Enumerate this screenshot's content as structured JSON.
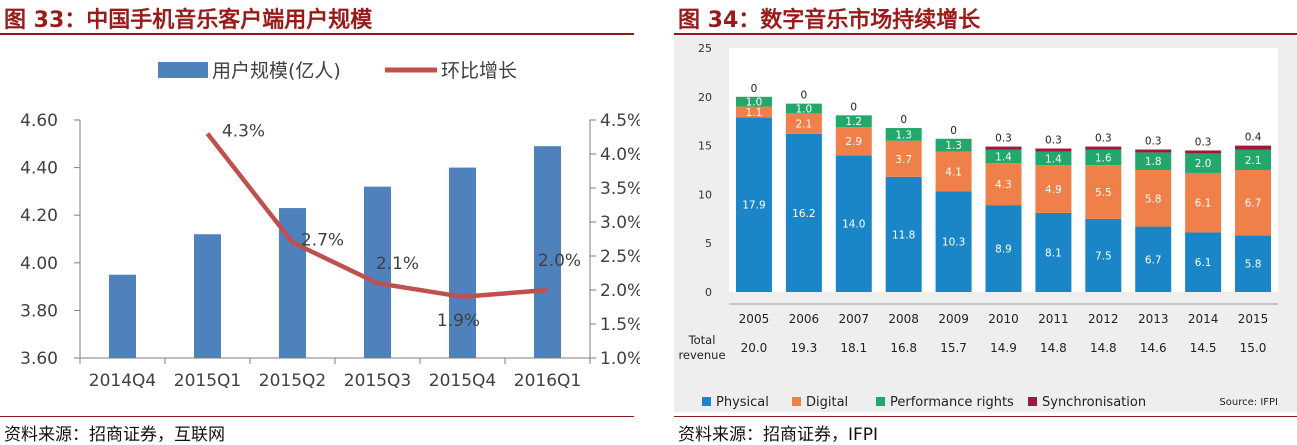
{
  "left": {
    "title": "图 33：中国手机音乐客户端用户规模",
    "source": "资料来源：招商证券，互联网",
    "chart_data": {
      "type": "bar",
      "categories": [
        "2014Q4",
        "2015Q1",
        "2015Q2",
        "2015Q3",
        "2015Q4",
        "2016Q1"
      ],
      "series": [
        {
          "name": "用户规模(亿人)",
          "type": "bar",
          "axis": "left",
          "values": [
            3.95,
            4.12,
            4.23,
            4.32,
            4.4,
            4.49
          ],
          "color": "#4f81bd"
        },
        {
          "name": "环比增长",
          "type": "line",
          "axis": "right",
          "values": [
            null,
            4.3,
            2.7,
            2.1,
            1.9,
            2.0
          ],
          "labels": [
            null,
            "4.3%",
            "2.7%",
            "2.1%",
            "1.9%",
            "2.0%"
          ],
          "color": "#c0504d"
        }
      ],
      "y_left": {
        "min": 3.6,
        "max": 4.6,
        "ticks": [
          "3.60",
          "3.80",
          "4.00",
          "4.20",
          "4.40",
          "4.60"
        ]
      },
      "y_right": {
        "min": 1.0,
        "max": 4.5,
        "ticks": [
          "1.0%",
          "1.5%",
          "2.0%",
          "2.5%",
          "3.0%",
          "3.5%",
          "4.0%",
          "4.5%"
        ]
      },
      "legend_position": "top"
    }
  },
  "right": {
    "title": "图 34：数字音乐市场持续增长",
    "source": "资料来源：招商证券，IFPI",
    "chart_data": {
      "type": "bar",
      "stacked": true,
      "categories": [
        "2005",
        "2006",
        "2007",
        "2008",
        "2009",
        "2010",
        "2011",
        "2012",
        "2013",
        "2014",
        "2015"
      ],
      "series": [
        {
          "name": "Physical",
          "values": [
            17.9,
            16.2,
            14.0,
            11.8,
            10.3,
            8.9,
            8.1,
            7.5,
            6.7,
            6.1,
            5.8
          ],
          "labels": [
            "17.9",
            "16.2",
            "14.0",
            "11.8",
            "10.3",
            "8.9",
            "8.1",
            "7.5",
            "6.7",
            "6.1",
            "5.8"
          ],
          "color": "#1a86c8"
        },
        {
          "name": "Digital",
          "values": [
            1.1,
            2.1,
            2.9,
            3.7,
            4.1,
            4.3,
            4.9,
            5.5,
            5.8,
            6.1,
            6.7
          ],
          "labels": [
            "1.1",
            "2.1",
            "2.9",
            "3.7",
            "4.1",
            "4.3",
            "4.9",
            "5.5",
            "5.8",
            "6.1",
            "6.7"
          ],
          "color": "#f0804a"
        },
        {
          "name": "Performance rights",
          "values": [
            1.0,
            1.0,
            1.2,
            1.3,
            1.3,
            1.4,
            1.4,
            1.6,
            1.8,
            2.0,
            2.1
          ],
          "labels": [
            "1.0",
            "1.0",
            "1.2",
            "1.3",
            "1.3",
            "1.4",
            "1.4",
            "1.6",
            "1.8",
            "2.0",
            "2.1"
          ],
          "color": "#22a86a"
        },
        {
          "name": "Synchronisation",
          "values": [
            0,
            0,
            0,
            0,
            0,
            0.3,
            0.3,
            0.3,
            0.3,
            0.3,
            0.4
          ],
          "labels": [
            "0",
            "0",
            "0",
            "0",
            "0",
            "0.3",
            "0.3",
            "0.3",
            "0.3",
            "0.3",
            "0.4"
          ],
          "color": "#a3163e"
        }
      ],
      "totals_label": "Total revenue",
      "totals_label_lines": [
        "Total",
        "revenue"
      ],
      "totals": [
        "20.0",
        "19.3",
        "18.1",
        "16.8",
        "15.7",
        "14.9",
        "14.8",
        "14.8",
        "14.6",
        "14.5",
        "15.0"
      ],
      "y_axis": {
        "min": 0,
        "max": 25,
        "ticks": [
          "0",
          "5",
          "10",
          "15",
          "20",
          "25"
        ]
      },
      "source_note": "Source: IFPI",
      "legend_position": "bottom"
    }
  }
}
